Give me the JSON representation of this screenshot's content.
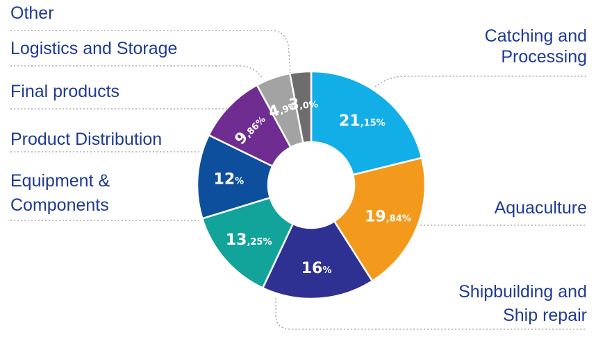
{
  "chart_data": {
    "type": "pie",
    "donut": true,
    "slices": [
      {
        "category": "Catching and Processing",
        "label_lines": [
          "Catching and",
          "Processing"
        ],
        "value": 21.15,
        "big": "21",
        "small": ",15%",
        "color": "#12aee8"
      },
      {
        "category": "Aquaculture",
        "label_lines": [
          "Aquaculture"
        ],
        "value": 19.84,
        "big": "19",
        "small": ",84%",
        "color": "#f39a1c"
      },
      {
        "category": "Shipbuilding and Ship repair",
        "label_lines": [
          "Shipbuilding and",
          "Ship repair"
        ],
        "value": 16,
        "big": "16",
        "small": "%",
        "color": "#2e3192"
      },
      {
        "category": "Equipment & Components",
        "label_lines": [
          "Equipment &",
          "Components"
        ],
        "value": 13.25,
        "big": "13",
        "small": ",25%",
        "color": "#12a39a"
      },
      {
        "category": "Product Distribution",
        "label_lines": [
          "Product Distribution"
        ],
        "value": 12,
        "big": "12",
        "small": "%",
        "color": "#0d4f9c"
      },
      {
        "category": "Final products",
        "label_lines": [
          "Final products"
        ],
        "value": 9.86,
        "big": "9",
        "small": ",86%",
        "color": "#6f2c91"
      },
      {
        "category": "Logistics and Storage",
        "label_lines": [
          "Logistics and Storage"
        ],
        "value": 4.9,
        "big": "4",
        "small": ",9%",
        "color": "#a3a3a3"
      },
      {
        "category": "Other",
        "label_lines": [
          "Other"
        ],
        "value": 3.0,
        "big": "3",
        "small": ",0%",
        "color": "#6d6d6d"
      }
    ],
    "legend": "labels around the chart with dotted leader lines"
  }
}
